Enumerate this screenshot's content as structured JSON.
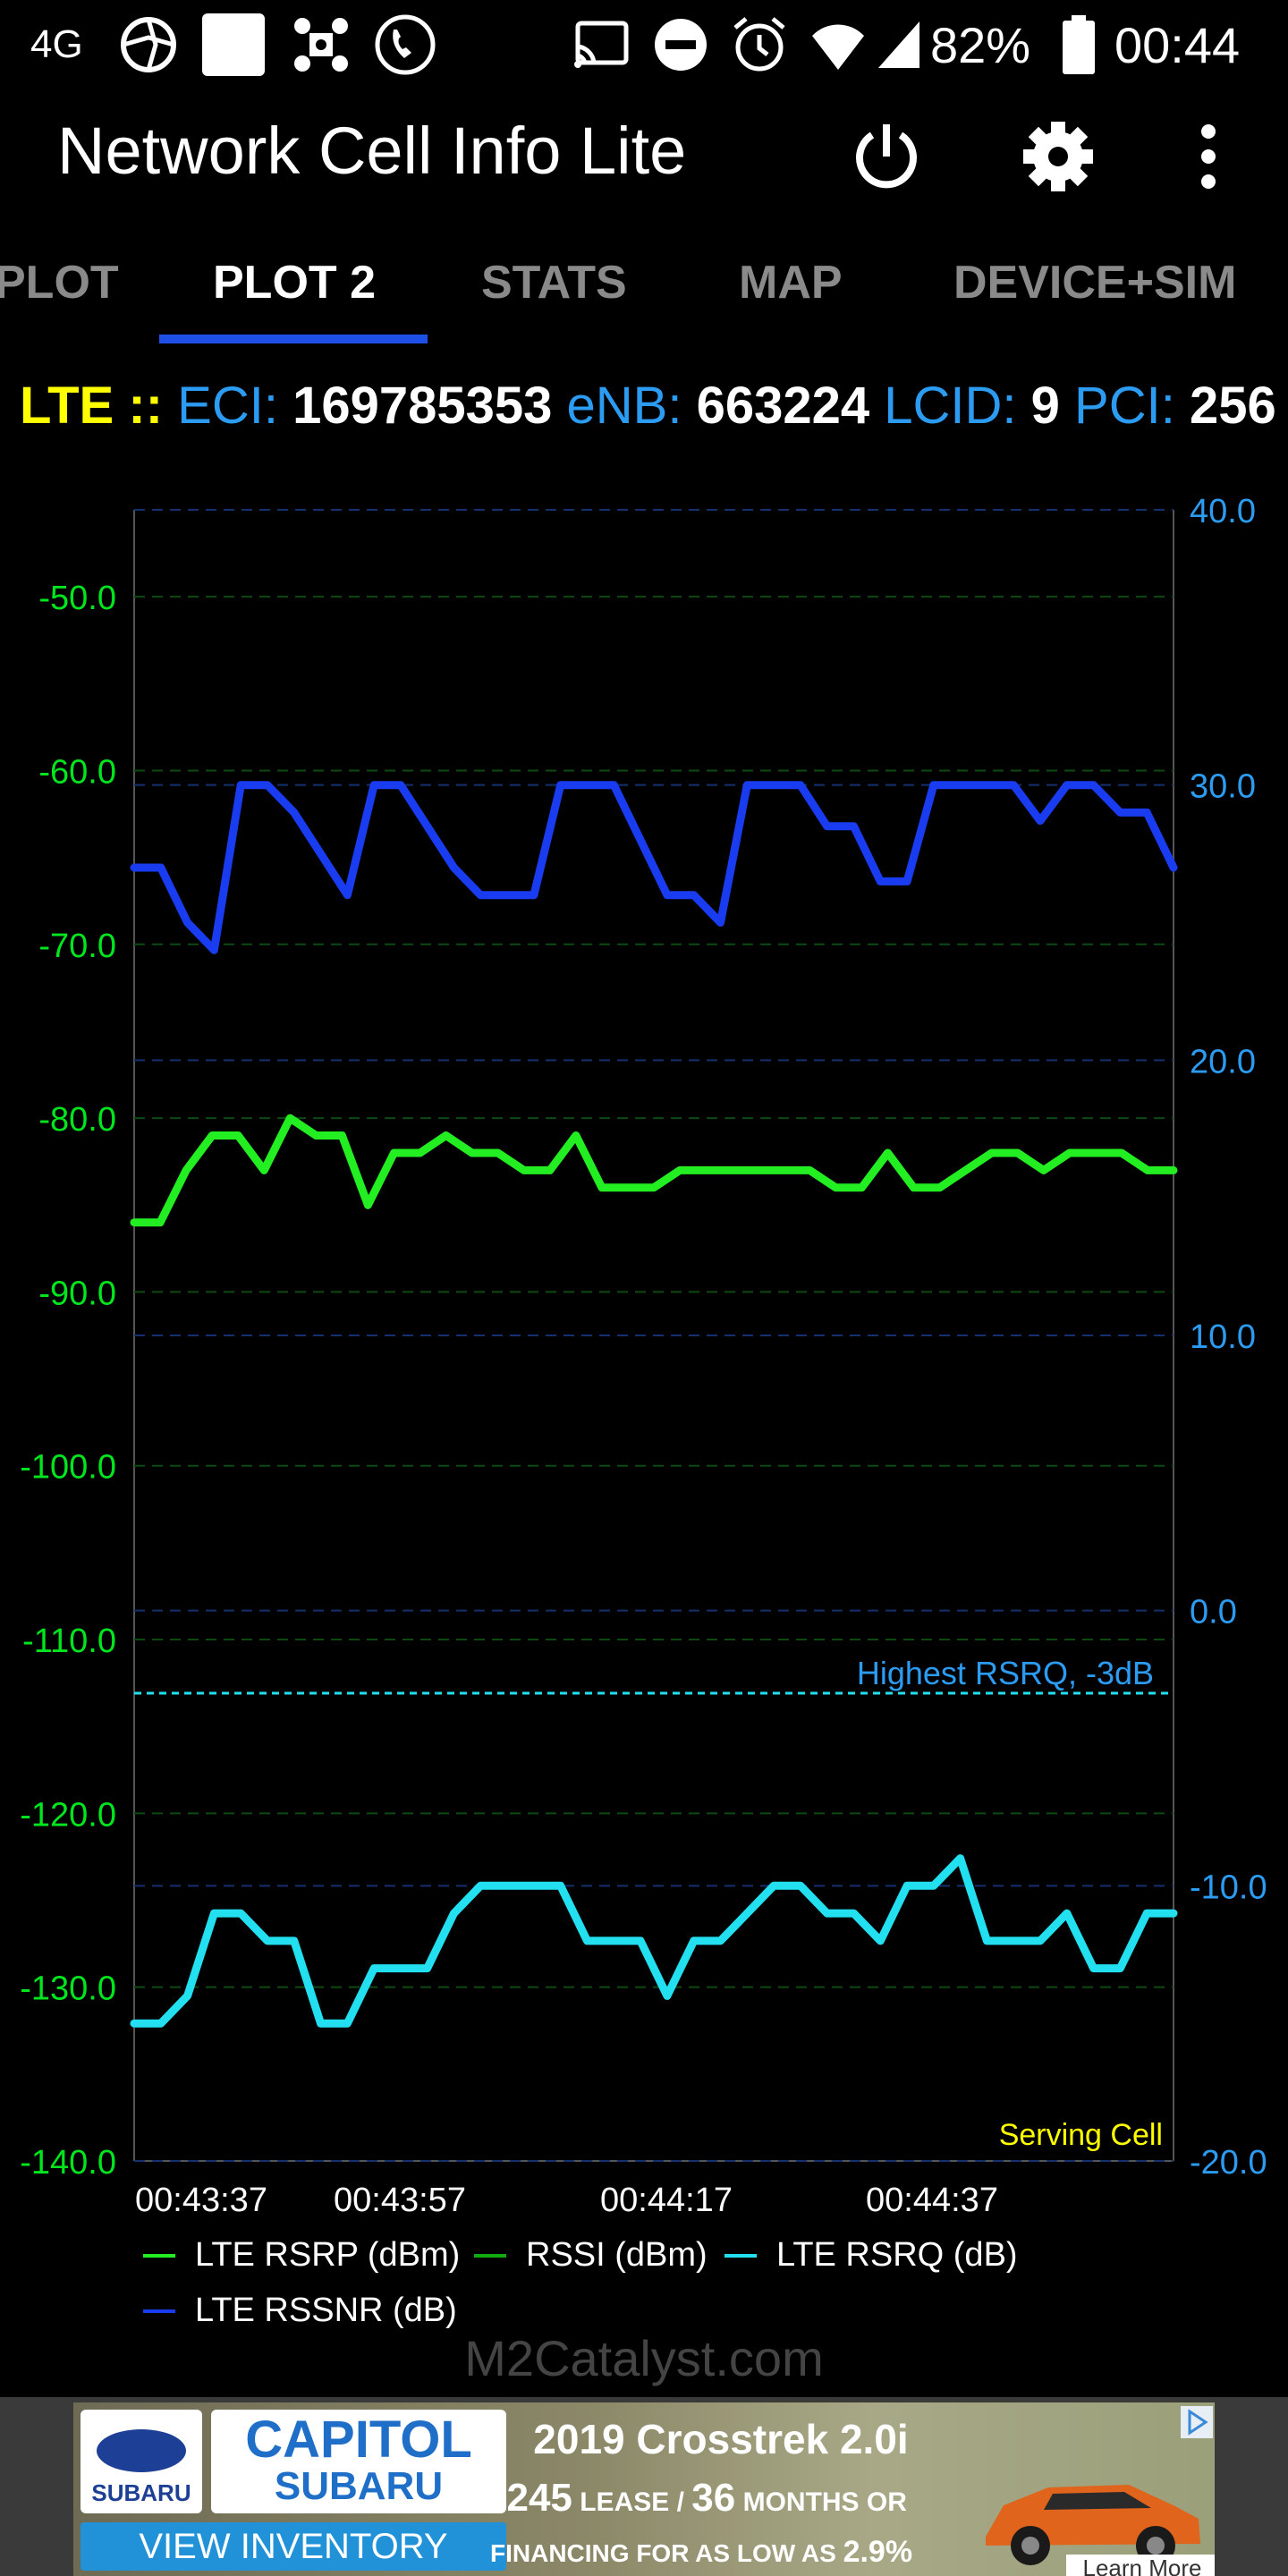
{
  "status_bar": {
    "network_type": "4G",
    "battery_percent": "82%",
    "time": "00:44"
  },
  "app_bar": {
    "title": "Network Cell Info Lite"
  },
  "tabs": [
    {
      "label": "PLOT",
      "active": false
    },
    {
      "label": "PLOT 2",
      "active": true
    },
    {
      "label": "STATS",
      "active": false
    },
    {
      "label": "MAP",
      "active": false
    },
    {
      "label": "DEVICE+SIM",
      "active": false
    }
  ],
  "cell_info": {
    "tech": "LTE",
    "separator": "::",
    "eci_label": "ECI:",
    "eci_value": "169785353",
    "enb_label": "eNB:",
    "enb_value": "663224",
    "lcid_label": "LCID:",
    "lcid_value": "9",
    "pci_label": "PCI:",
    "pci_value": "256"
  },
  "chart_data": {
    "type": "line",
    "left_axis": {
      "range": [
        -140,
        -45
      ],
      "ticks": [
        "-50.0",
        "-60.0",
        "-70.0",
        "-80.0",
        "-90.0",
        "-100.0",
        "-110.0",
        "-120.0",
        "-130.0",
        "-140.0"
      ],
      "color": "#00e61e"
    },
    "right_axis": {
      "range": [
        -20,
        40
      ],
      "ticks": [
        "40.0",
        "30.0",
        "20.0",
        "10.0",
        "0.0",
        "-10.0",
        "-20.0"
      ],
      "color": "#2c9cf2"
    },
    "x_ticks": [
      "00:43:37",
      "00:43:57",
      "00:44:17",
      "00:44:37"
    ],
    "reference_line": {
      "label": "Highest RSRQ, -3dB",
      "value": -3,
      "axis": "right"
    },
    "corner_label": "Serving Cell",
    "series": [
      {
        "name": "LTE RSRP (dBm)",
        "axis": "left",
        "color": "#22ee22",
        "values": [
          -86,
          -86,
          -83,
          -81,
          -81,
          -83,
          -80,
          -81,
          -81,
          -85,
          -82,
          -82,
          -81,
          -82,
          -82,
          -83,
          -83,
          -81,
          -84,
          -84,
          -84,
          -83,
          -83,
          -83,
          -83,
          -83,
          -83,
          -84,
          -84,
          -82,
          -84,
          -84,
          -83,
          -82,
          -82,
          -83,
          -82,
          -82,
          -82,
          -83,
          -83
        ]
      },
      {
        "name": "RSSI (dBm)",
        "axis": "left",
        "color": "#11aa11",
        "values": []
      },
      {
        "name": "LTE RSRQ (dB)",
        "axis": "right",
        "color": "#22e0f0",
        "values": [
          -15,
          -15,
          -14,
          -11,
          -11,
          -12,
          -12,
          -15,
          -15,
          -13,
          -13,
          -13,
          -11,
          -10,
          -10,
          -10,
          -10,
          -12,
          -12,
          -12,
          -14,
          -12,
          -12,
          -11,
          -10,
          -10,
          -11,
          -11,
          -12,
          -10,
          -10,
          -9,
          -12,
          -12,
          -12,
          -11,
          -13,
          -13,
          -11,
          -11
        ]
      },
      {
        "name": "LTE RSSNR (dB)",
        "axis": "right",
        "color": "#1a3cf0",
        "values": [
          27,
          27,
          25,
          24,
          30,
          30,
          29,
          27.5,
          26,
          30,
          30,
          28.5,
          27,
          26,
          26,
          26,
          30,
          30,
          30,
          28,
          26,
          26,
          25,
          30,
          30,
          30,
          28.5,
          28.5,
          26.5,
          26.5,
          30,
          30,
          30,
          30,
          28.7,
          30,
          30,
          29,
          29,
          27
        ]
      }
    ],
    "grid": true
  },
  "legend": [
    {
      "label": "LTE RSRP (dBm)",
      "color": "#22ee22"
    },
    {
      "label": "RSSI (dBm)",
      "color": "#11aa11"
    },
    {
      "label": "LTE RSRQ (dB)",
      "color": "#22e0f0"
    },
    {
      "label": "LTE RSSNR (dB)",
      "color": "#1a3cf0"
    }
  ],
  "watermark": "M2Catalyst.com",
  "ad": {
    "logo_text": "SUBARU",
    "brand_line1": "CAPITOL",
    "brand_line2": "SUBARU",
    "cta": "VIEW INVENTORY",
    "headline": "2019 Crosstrek 2.0i",
    "price": "$245",
    "lease_text": "LEASE /",
    "months": "36",
    "months_text": "MONTHS OR",
    "financing_text": "FINANCING FOR AS LOW AS",
    "rate": "2.9%",
    "learn_more": "Learn More"
  }
}
